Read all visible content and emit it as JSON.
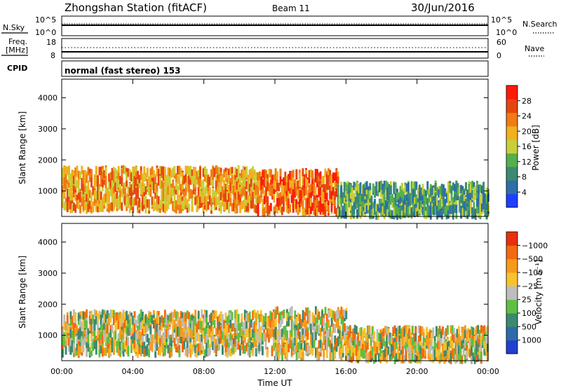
{
  "header": {
    "station": "Zhongshan Station (fitACF)",
    "beam": "Beam 11",
    "date": "30/Jun/2016"
  },
  "top_panels": {
    "nsky_label": "N.Sky",
    "nsky_tick_hi": "10^5",
    "nsky_tick_lo": "10^0",
    "nsearch_label": "N.Search",
    "nsearch_tick_hi": "10^5",
    "nsearch_tick_lo": "10^0",
    "freq_label_1": "Freq.",
    "freq_label_2": "[MHz]",
    "freq_tick_hi": "18",
    "freq_tick_lo": "8",
    "nave_label": "Nave",
    "nave_tick_hi": "60",
    "nave_tick_lo": "0",
    "cpid_label": "CPID",
    "cpid_value": "normal (fast stereo) 153"
  },
  "chart_data": [
    {
      "type": "heatmap",
      "panel": "power",
      "ylabel": "Slant Range [km]",
      "xlabel": "",
      "x_ticks": [
        "00:00",
        "04:00",
        "08:00",
        "12:00",
        "16:00",
        "20:00",
        "00:00"
      ],
      "y_ticks": [
        1000,
        2000,
        3000,
        4000
      ],
      "ylim": [
        180,
        4600
      ],
      "colorbar_label": "Power [dB]",
      "colorbar_ticks": [
        "4",
        "8",
        "12",
        "16",
        "20",
        "24",
        "28"
      ],
      "colorbar_colors": [
        "#1f3fff",
        "#2d6ea8",
        "#3a8a72",
        "#55b04b",
        "#c8cf3a",
        "#f0b020",
        "#f07c12",
        "#e84410",
        "#ff1a08"
      ],
      "regions": [
        {
          "time_start": "00:00",
          "time_end": "11:00",
          "range_min": 400,
          "range_max": 1700,
          "typical_power_db": 24
        },
        {
          "time_start": "11:00",
          "time_end": "15:30",
          "range_min": 300,
          "range_max": 1600,
          "typical_power_db": 28
        },
        {
          "time_start": "15:30",
          "time_end": "24:00",
          "range_min": 200,
          "range_max": 1200,
          "typical_power_db": 10
        }
      ]
    },
    {
      "type": "heatmap",
      "panel": "velocity",
      "ylabel": "Slant Range [km]",
      "xlabel": "Time UT",
      "x_ticks": [
        "00:00",
        "04:00",
        "08:00",
        "12:00",
        "16:00",
        "20:00",
        "00:00"
      ],
      "y_ticks": [
        1000,
        2000,
        3000,
        4000
      ],
      "ylim": [
        180,
        4600
      ],
      "colorbar_label": "Velocity [m s⁻¹]",
      "colorbar_ticks": [
        "1000",
        "500",
        "100",
        "25",
        "−25",
        "−100",
        "−500",
        "−1000"
      ],
      "colorbar_colors": [
        "#2040d0",
        "#2f6aa8",
        "#3a8a70",
        "#5dc043",
        "#bdbdbd",
        "#f8c22c",
        "#f79a1c",
        "#f26a10",
        "#e8300c"
      ],
      "regions": [
        {
          "time_start": "00:00",
          "time_end": "12:00",
          "range_min": 400,
          "range_max": 1700,
          "typical_velocity": -100
        },
        {
          "time_start": "12:00",
          "time_end": "16:00",
          "range_min": 300,
          "range_max": 1800,
          "typical_velocity": 25
        },
        {
          "time_start": "16:00",
          "time_end": "24:00",
          "range_min": 200,
          "range_max": 1200,
          "typical_velocity": 100
        }
      ]
    }
  ]
}
